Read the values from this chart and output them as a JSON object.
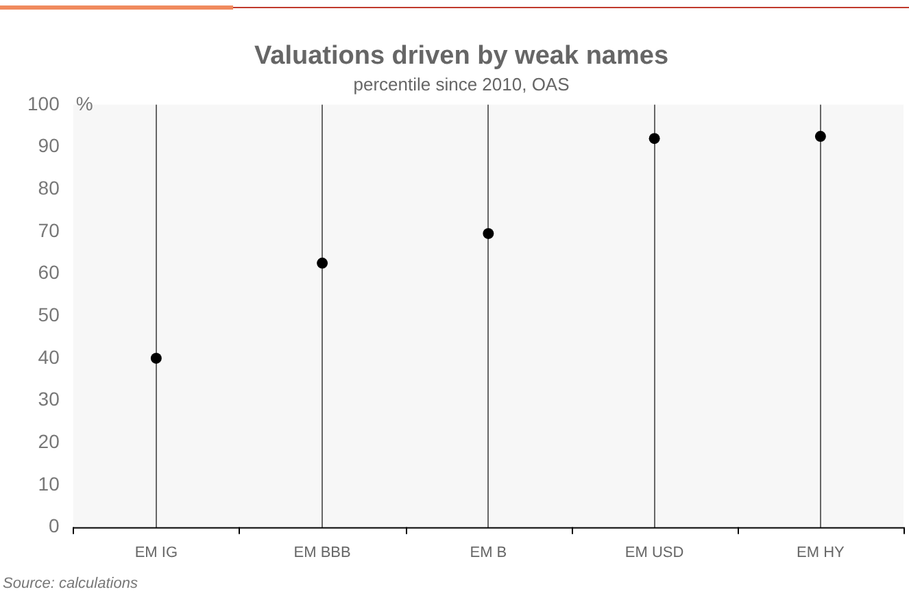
{
  "chart_data": {
    "type": "scatter",
    "title": "Valuations driven by weak names",
    "subtitle": "percentile since 2010, OAS",
    "ylabel": "%",
    "categories": [
      "EM IG",
      "EM BBB",
      "EM B",
      "EM USD",
      "EM HY"
    ],
    "values": [
      40,
      62.5,
      69.5,
      92,
      92.5
    ],
    "color": "#000000",
    "marker": "circle",
    "ylim": [
      0,
      100
    ],
    "yticks": [
      0,
      10,
      20,
      30,
      40,
      50,
      60,
      70,
      80,
      90,
      100
    ],
    "grid": "x",
    "legend": false,
    "annotations": [
      "Source: calculations"
    ]
  }
}
